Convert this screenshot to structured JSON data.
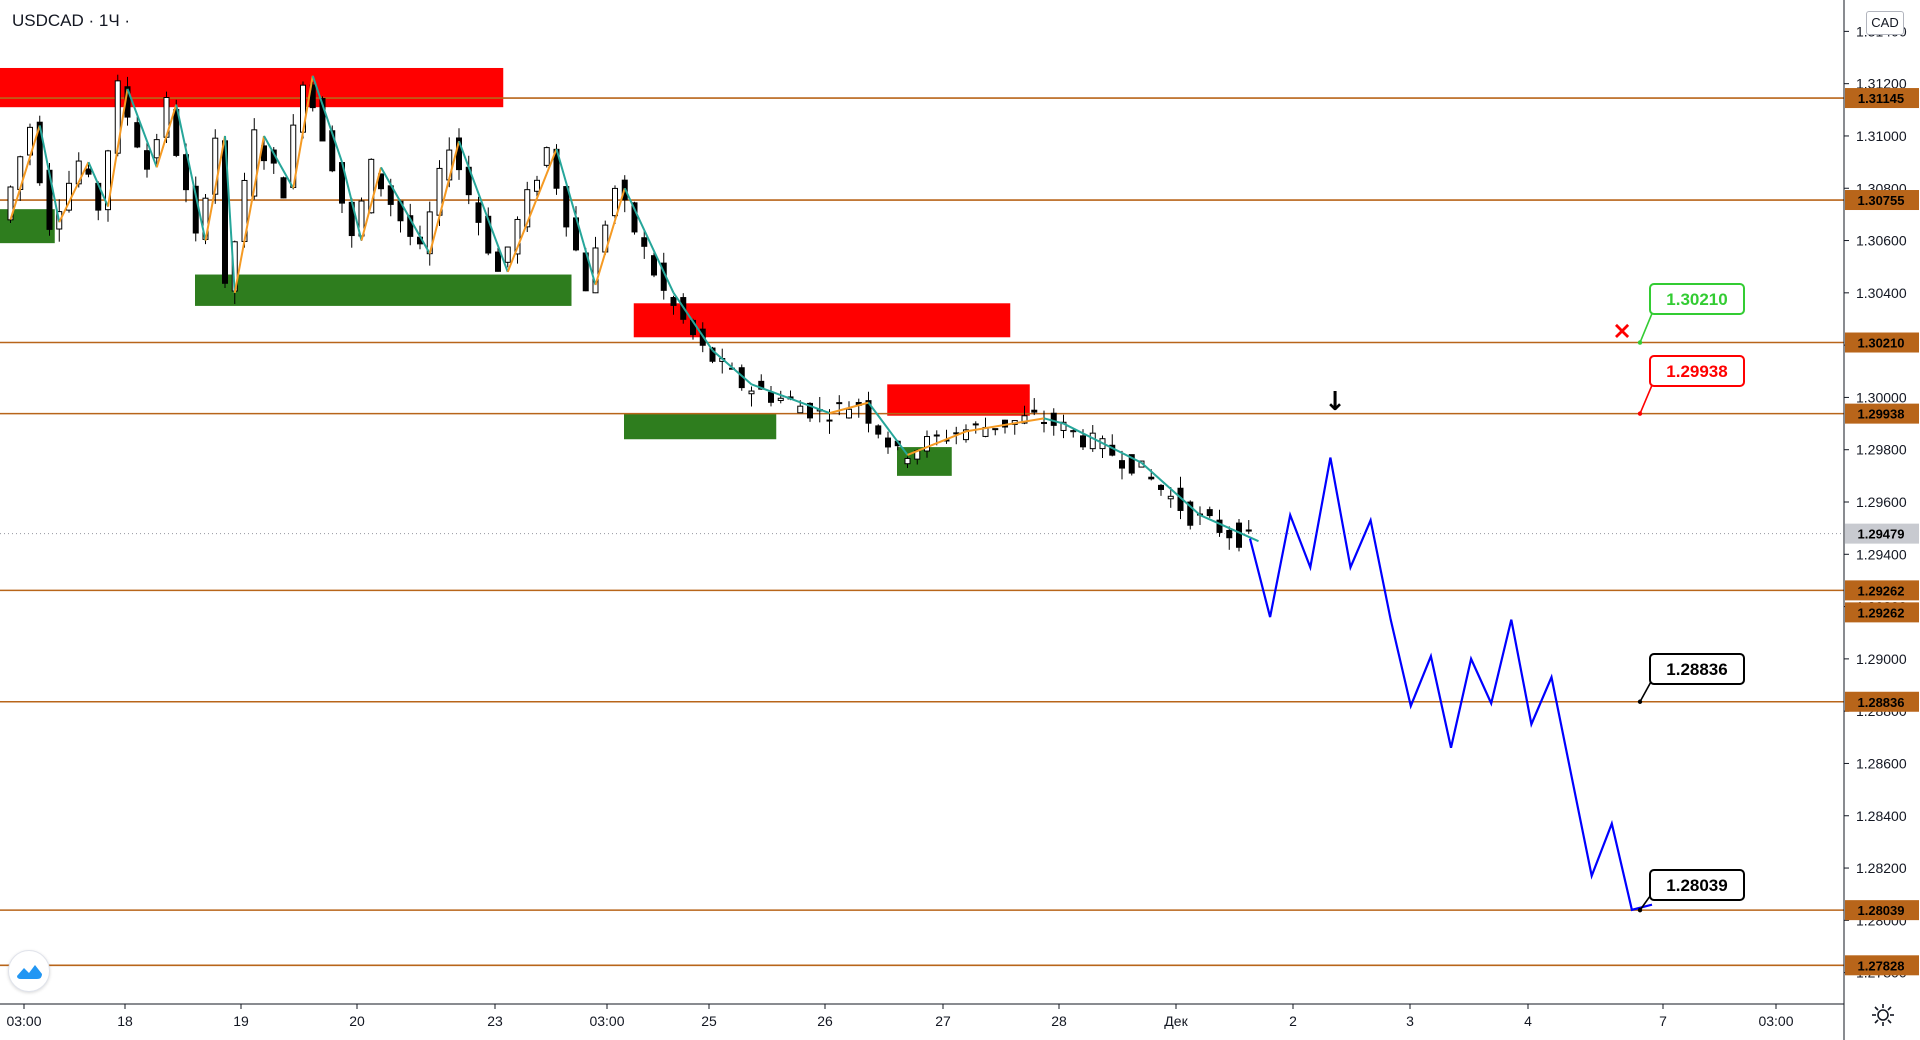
{
  "header": {
    "symbol": "USDCAD · 1Ч ·",
    "currency": "CAD"
  },
  "chart_data": {
    "type": "line",
    "title": "USDCAD · 1Ч",
    "ylim": [
      1.2768,
      1.3152
    ],
    "y_ticks": [
      "1.31400",
      "1.31200",
      "1.31000",
      "1.30800",
      "1.30600",
      "1.30400",
      "1.30200",
      "1.30000",
      "1.29800",
      "1.29600",
      "1.29400",
      "1.29200",
      "1.29000",
      "1.28800",
      "1.28600",
      "1.28400",
      "1.28200",
      "1.28000",
      "1.27800"
    ],
    "x_ticks": [
      "03:00",
      "18",
      "19",
      "20",
      "23",
      "03:00",
      "25",
      "26",
      "27",
      "28",
      "Дек",
      "2",
      "3",
      "4",
      "7",
      "03:00"
    ],
    "levels": [
      {
        "value": 1.31145,
        "label": "1.31145"
      },
      {
        "value": 1.30755,
        "label": "1.30755"
      },
      {
        "value": 1.3021,
        "label": "1.30210"
      },
      {
        "value": 1.29938,
        "label": "1.29938"
      },
      {
        "value": 1.29262,
        "label": "1.29262"
      },
      {
        "value": 1.28836,
        "label": "1.28836"
      },
      {
        "value": 1.28039,
        "label": "1.28039"
      },
      {
        "value": 1.27828,
        "label": "1.27828"
      }
    ],
    "extra_tags": [
      {
        "value": 1.29262,
        "label": "1.29262"
      }
    ],
    "current_price": {
      "value": 1.29479,
      "label": "1.29479"
    },
    "supply_zones": [
      {
        "x0": 0,
        "x1": 51,
        "y_top": 1.3126,
        "y_bottom": 1.3111
      },
      {
        "x0": 65,
        "x1": 103,
        "y_top": 1.3036,
        "y_bottom": 1.3023
      },
      {
        "x0": 91,
        "x1": 105,
        "y_top": 1.3005,
        "y_bottom": 1.2993
      }
    ],
    "demand_zones": [
      {
        "x0": 0,
        "x1": 5,
        "y_top": 1.3072,
        "y_bottom": 1.3059
      },
      {
        "x0": 20,
        "x1": 58,
        "y_top": 1.3047,
        "y_bottom": 1.3035
      },
      {
        "x0": 64,
        "x1": 79,
        "y_top": 1.2994,
        "y_bottom": 1.2984
      },
      {
        "x0": 92,
        "x1": 97,
        "y_top": 1.2981,
        "y_bottom": 1.297
      }
    ],
    "zigzag": [
      [
        0,
        1.3068
      ],
      [
        3,
        1.3104
      ],
      [
        5,
        1.3067
      ],
      [
        8,
        1.309
      ],
      [
        10,
        1.3073
      ],
      [
        12,
        1.3118
      ],
      [
        15,
        1.3088
      ],
      [
        17,
        1.3112
      ],
      [
        20,
        1.306
      ],
      [
        22,
        1.31
      ],
      [
        23,
        1.304
      ],
      [
        26,
        1.31
      ],
      [
        29,
        1.308
      ],
      [
        31,
        1.3123
      ],
      [
        34,
        1.309
      ],
      [
        36,
        1.306
      ],
      [
        38,
        1.3088
      ],
      [
        43,
        1.3055
      ],
      [
        46,
        1.3098
      ],
      [
        51,
        1.3048
      ],
      [
        56,
        1.3095
      ],
      [
        60,
        1.3043
      ],
      [
        63,
        1.308
      ],
      [
        68,
        1.304
      ],
      [
        72,
        1.3018
      ],
      [
        76,
        1.3005
      ],
      [
        84,
        1.2994
      ],
      [
        88,
        1.2998
      ],
      [
        92,
        1.2978
      ],
      [
        98,
        1.2987
      ],
      [
        106,
        1.2992
      ],
      [
        108,
        1.299
      ],
      [
        116,
        1.2975
      ],
      [
        122,
        1.2955
      ],
      [
        128,
        1.2945
      ]
    ],
    "projection": [
      [
        0,
        1.2946
      ],
      [
        1,
        1.2916
      ],
      [
        2,
        1.2955
      ],
      [
        3,
        1.2935
      ],
      [
        4,
        1.2977
      ],
      [
        5,
        1.2935
      ],
      [
        6,
        1.2953
      ],
      [
        7,
        1.2915
      ],
      [
        8,
        1.2882
      ],
      [
        9,
        1.2901
      ],
      [
        10,
        1.2866
      ],
      [
        11,
        1.29
      ],
      [
        12,
        1.2883
      ],
      [
        13,
        1.2915
      ],
      [
        14,
        1.2875
      ],
      [
        15,
        1.2893
      ],
      [
        16,
        1.2855
      ],
      [
        17,
        1.2817
      ],
      [
        18,
        1.2837
      ],
      [
        19,
        1.2804
      ],
      [
        20,
        1.2806
      ]
    ],
    "callouts": [
      {
        "label": "1.30210",
        "value": 1.3021,
        "color": "#33cc33",
        "marker": "×"
      },
      {
        "label": "1.29938",
        "value": 1.29938,
        "color": "#ff0000"
      },
      {
        "label": "1.28836",
        "value": 1.28836,
        "color": "#000000"
      },
      {
        "label": "1.28039",
        "value": 1.28039,
        "color": "#000000"
      }
    ],
    "marker_arrow": "↓",
    "colors": {
      "level": "#b8651a",
      "supply": "#ff0000",
      "demand": "#2e7d1e",
      "zig_up": "#f59a23",
      "zig_down": "#26a69a",
      "projection": "#0000ff",
      "current": "#9598a1"
    }
  }
}
